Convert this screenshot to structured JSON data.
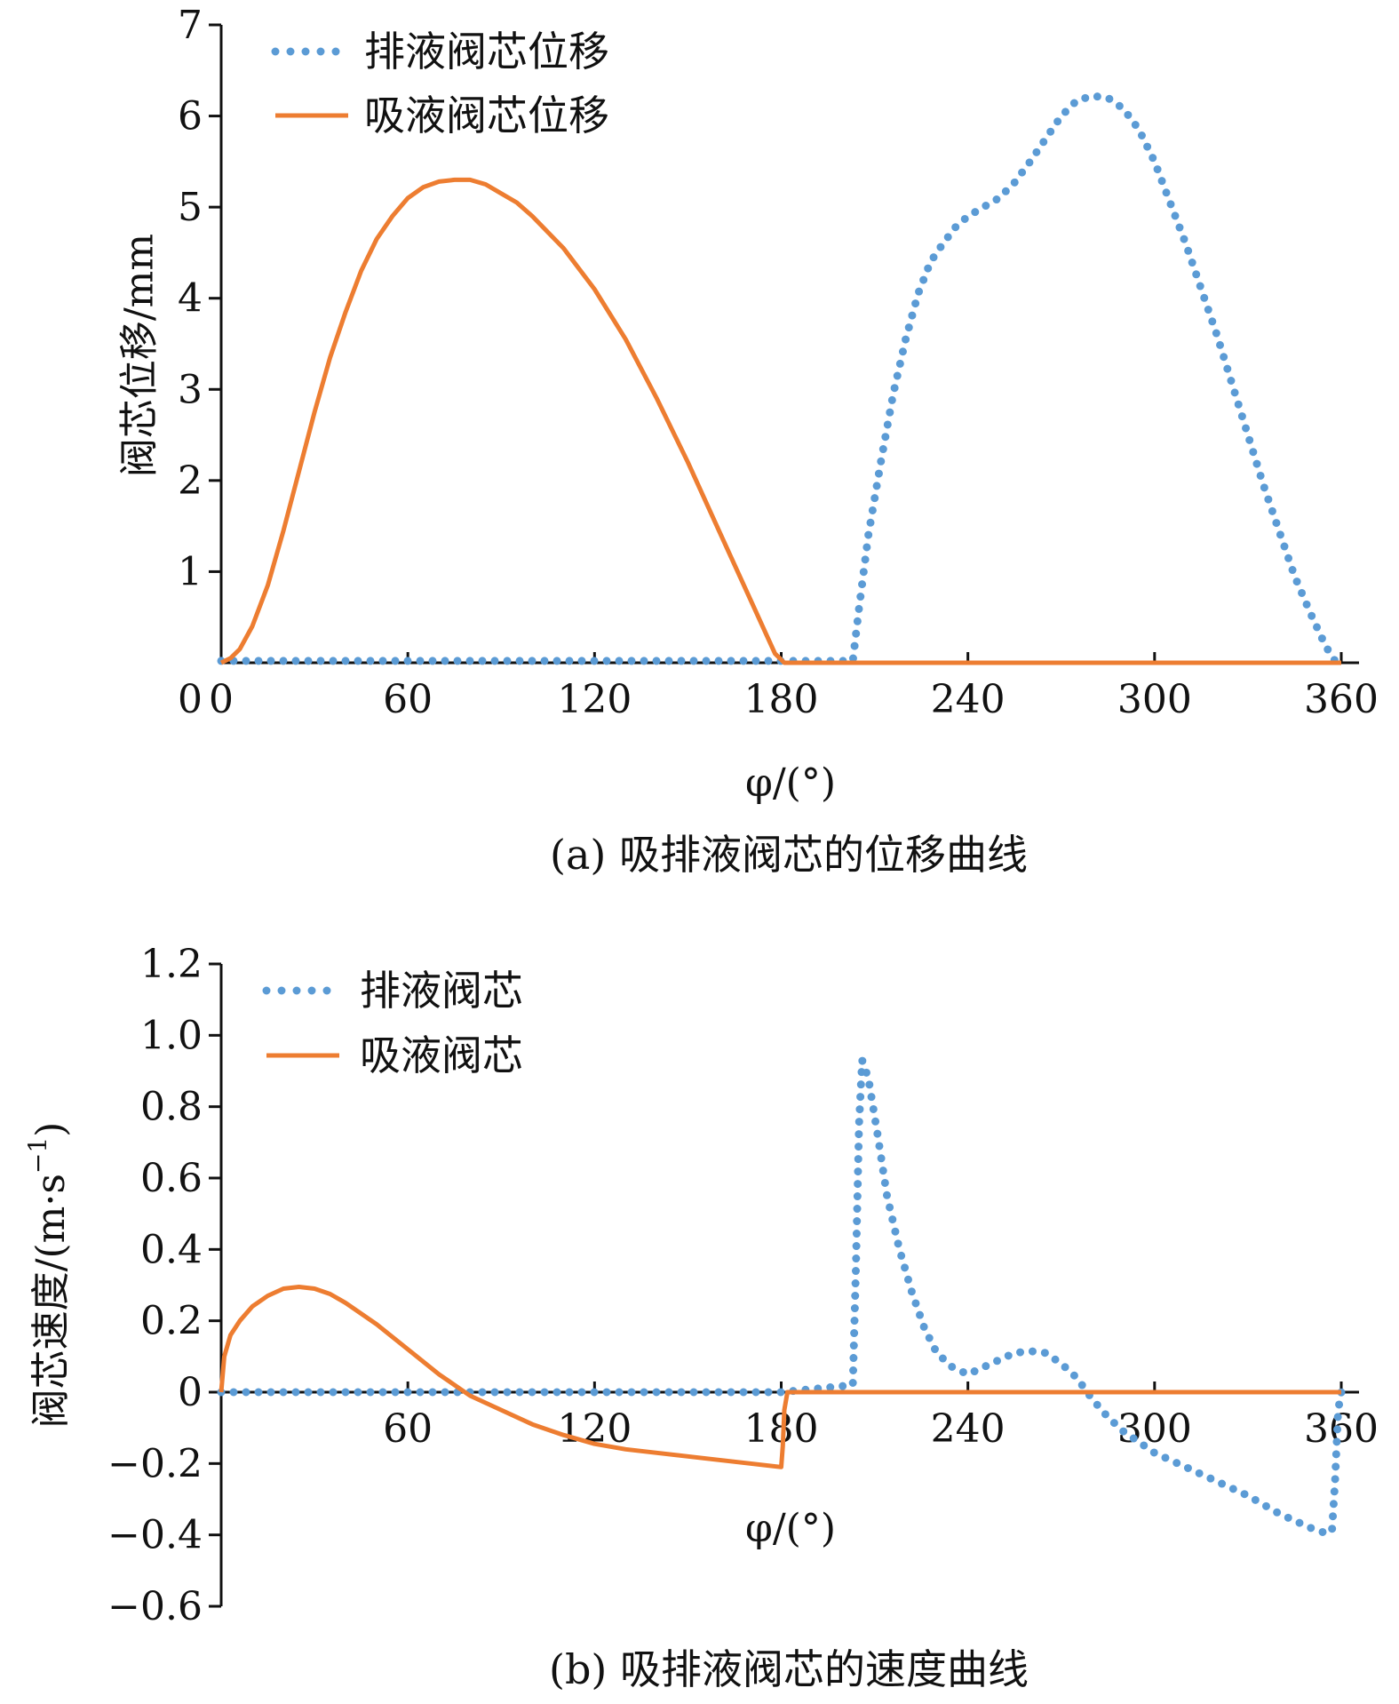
{
  "chart_data": [
    {
      "type": "line",
      "caption": "(a) 吸排液阀芯的位移曲线",
      "xlabel": "φ/(°)",
      "ylabel": "阀芯位移/mm",
      "xlim": [
        0,
        360
      ],
      "ylim": [
        0,
        7
      ],
      "x_ticks": [
        0,
        60,
        120,
        180,
        240,
        300,
        360
      ],
      "y_ticks": [
        1,
        2,
        3,
        4,
        5,
        6,
        7
      ],
      "grid": false,
      "legend_position": "top-left",
      "series": [
        {
          "name": "排液阀芯位移",
          "style": "dotted",
          "color": "#5B9BD5",
          "x": [
            0,
            180,
            203,
            205,
            208,
            212,
            216,
            220,
            224,
            228,
            232,
            236,
            240,
            245,
            250,
            255,
            260,
            265,
            270,
            275,
            280,
            285,
            290,
            295,
            300,
            305,
            310,
            315,
            320,
            325,
            330,
            335,
            340,
            345,
            350,
            355,
            358
          ],
          "y": [
            0.02,
            0.02,
            0.02,
            0.6,
            1.4,
            2.2,
            2.95,
            3.55,
            4.05,
            4.4,
            4.6,
            4.78,
            4.9,
            5.0,
            5.1,
            5.27,
            5.5,
            5.75,
            6.0,
            6.17,
            6.22,
            6.2,
            6.08,
            5.85,
            5.5,
            5.05,
            4.6,
            4.1,
            3.6,
            3.05,
            2.5,
            1.95,
            1.45,
            0.95,
            0.55,
            0.18,
            0.02
          ]
        },
        {
          "name": "吸液阀芯位移",
          "style": "solid",
          "color": "#ED7D31",
          "x": [
            0,
            3,
            6,
            10,
            15,
            20,
            25,
            30,
            35,
            40,
            45,
            50,
            55,
            60,
            65,
            70,
            75,
            80,
            85,
            90,
            95,
            100,
            110,
            120,
            130,
            140,
            150,
            160,
            170,
            178,
            181,
            360
          ],
          "y": [
            0,
            0.05,
            0.15,
            0.4,
            0.85,
            1.45,
            2.1,
            2.75,
            3.35,
            3.85,
            4.3,
            4.65,
            4.9,
            5.1,
            5.22,
            5.28,
            5.3,
            5.3,
            5.25,
            5.15,
            5.05,
            4.9,
            4.55,
            4.1,
            3.55,
            2.9,
            2.2,
            1.45,
            0.7,
            0.1,
            0,
            0
          ]
        }
      ]
    },
    {
      "type": "line",
      "caption": "(b) 吸排液阀芯的速度曲线",
      "xlabel": "φ/(°)",
      "ylabel": "阀芯速度/(m·s",
      "ylabel_sup": "−1",
      "ylabel_end": ")",
      "xlim": [
        0,
        360
      ],
      "ylim": [
        -0.6,
        1.2
      ],
      "x_ticks": [
        60,
        120,
        180,
        240,
        300,
        360
      ],
      "y_ticks": [
        -0.6,
        -0.4,
        -0.2,
        0,
        0.2,
        0.4,
        0.6,
        0.8,
        1.0,
        1.2
      ],
      "y_tick_labels": [
        "−0.6",
        "−0.4",
        "−0.2",
        "0",
        "0.2",
        "0.4",
        "0.6",
        "0.8",
        "1.0",
        "1.2"
      ],
      "grid": false,
      "legend_position": "top-left",
      "series": [
        {
          "name": "排液阀芯",
          "style": "dotted",
          "color": "#5B9BD5",
          "x": [
            0,
            180,
            203,
            204,
            205,
            206,
            208,
            211,
            214,
            218,
            222,
            226,
            230,
            235,
            240,
            245,
            250,
            255,
            260,
            265,
            270,
            275,
            280,
            285,
            290,
            295,
            300,
            310,
            320,
            330,
            340,
            350,
            355,
            357,
            358,
            359,
            360
          ],
          "y": [
            0,
            0,
            0.02,
            0.35,
            0.75,
            0.93,
            0.88,
            0.72,
            0.55,
            0.4,
            0.28,
            0.18,
            0.11,
            0.07,
            0.05,
            0.07,
            0.09,
            0.11,
            0.115,
            0.11,
            0.08,
            0.04,
            -0.02,
            -0.07,
            -0.11,
            -0.14,
            -0.17,
            -0.21,
            -0.25,
            -0.29,
            -0.34,
            -0.38,
            -0.395,
            -0.39,
            -0.25,
            -0.05,
            0
          ]
        },
        {
          "name": "吸液阀芯",
          "style": "solid",
          "color": "#ED7D31",
          "x": [
            0,
            1,
            3,
            6,
            10,
            15,
            20,
            25,
            30,
            35,
            40,
            50,
            60,
            70,
            80,
            90,
            100,
            110,
            120,
            130,
            140,
            150,
            160,
            170,
            180,
            180.5,
            181,
            182,
            360
          ],
          "y": [
            0,
            0.1,
            0.16,
            0.2,
            0.24,
            0.27,
            0.29,
            0.295,
            0.29,
            0.275,
            0.25,
            0.19,
            0.12,
            0.05,
            -0.01,
            -0.05,
            -0.09,
            -0.12,
            -0.145,
            -0.16,
            -0.17,
            -0.18,
            -0.19,
            -0.2,
            -0.21,
            -0.15,
            -0.05,
            0,
            0
          ]
        }
      ]
    }
  ]
}
